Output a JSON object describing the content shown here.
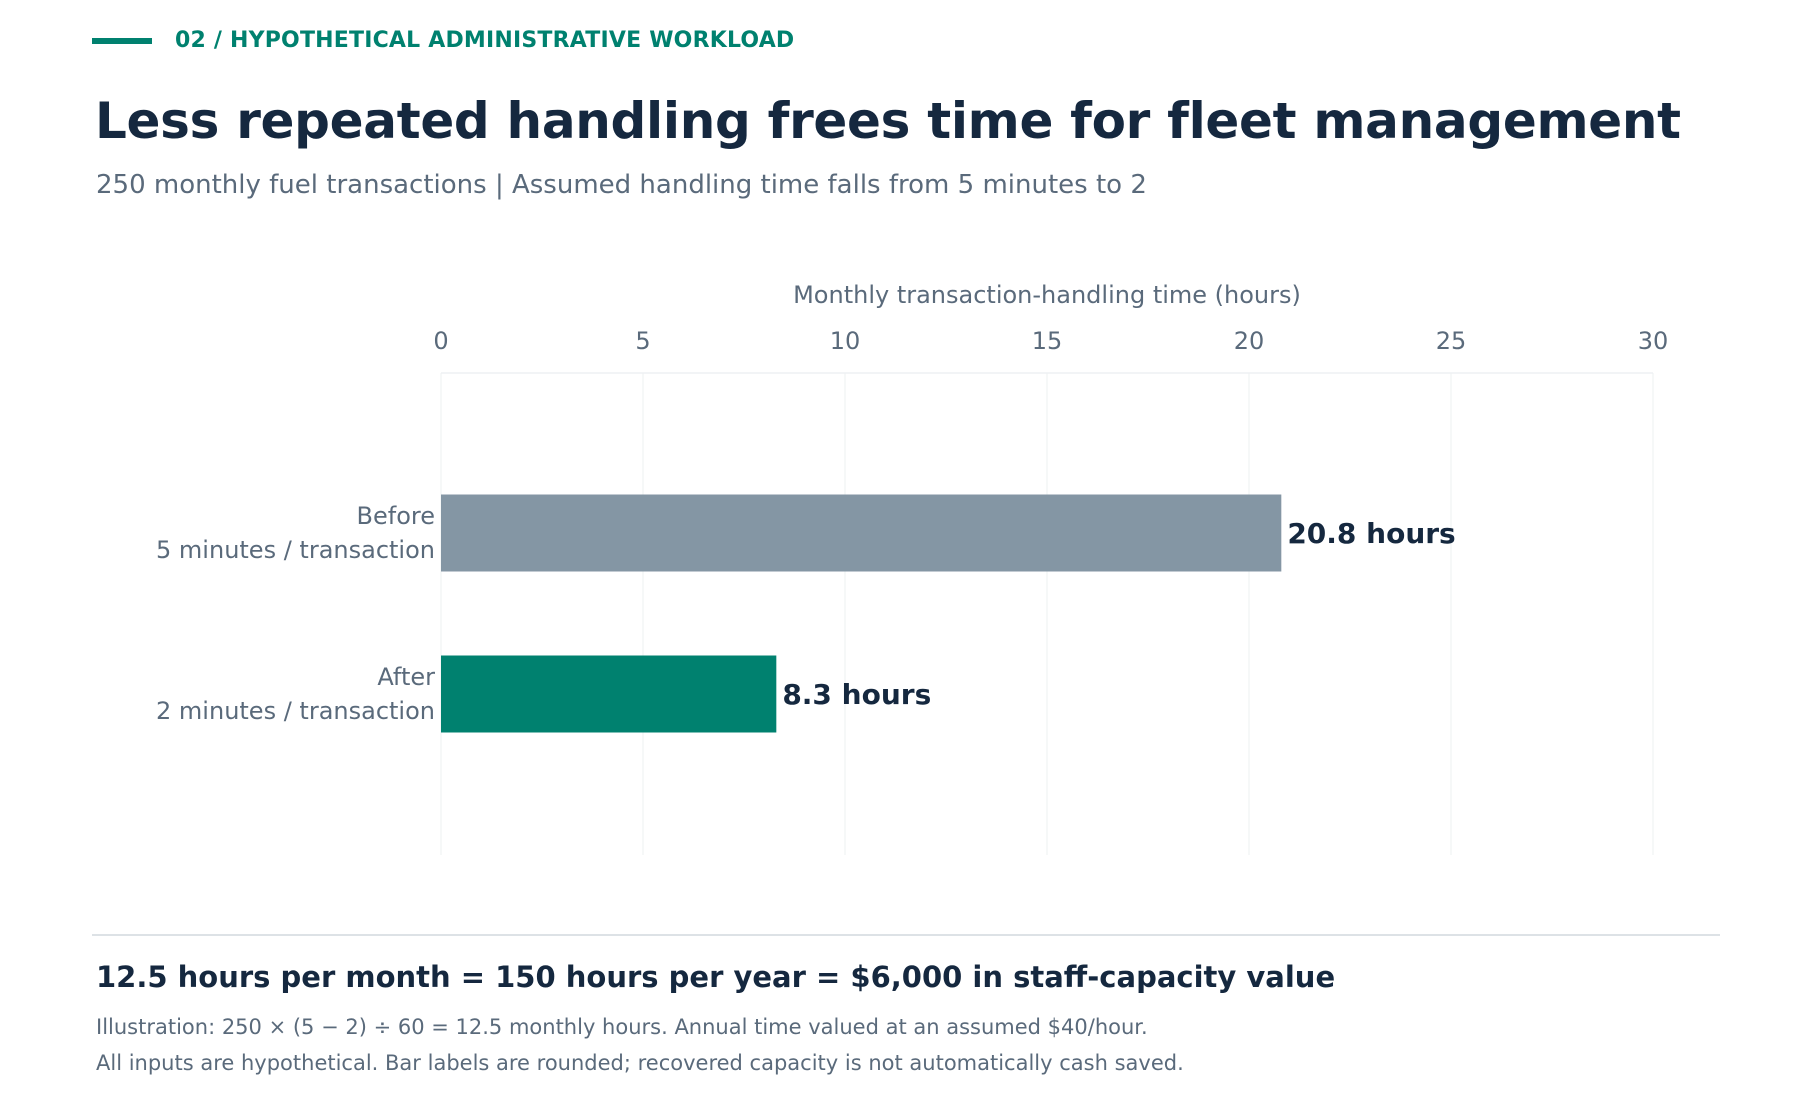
{
  "header": {
    "kicker": "02 / HYPOTHETICAL ADMINISTRATIVE WORKLOAD",
    "title": "Less repeated handling frees time for fleet management",
    "subtitle": "250 monthly fuel transactions  |  Assumed handling time falls from 5 minutes to 2"
  },
  "colors": {
    "accent": "#00816f",
    "before_bar": "#8496a4",
    "after_bar": "#00816f",
    "title": "#15283f",
    "muted": "#5a6a7b"
  },
  "chart_data": {
    "type": "bar",
    "orientation": "horizontal",
    "xlabel": "Monthly transaction-handling time (hours)",
    "xlim": [
      0,
      30
    ],
    "xticks": [
      0,
      5,
      10,
      15,
      20,
      25,
      30
    ],
    "grid": true,
    "categories": [
      {
        "label_line1": "Before",
        "label_line2": "5 minutes / transaction",
        "value": 20.8,
        "value_label": "20.8 hours",
        "color": "#8496a4"
      },
      {
        "label_line1": "After",
        "label_line2": "2 minutes / transaction",
        "value": 8.3,
        "value_label": "8.3 hours",
        "color": "#00816f"
      }
    ]
  },
  "footer": {
    "summary": "12.5 hours per month = 150 hours per year = $6,000 in staff-capacity value",
    "note1": "Illustration: 250 × (5 − 2) ÷ 60 = 12.5 monthly hours. Annual time valued at an assumed $40/hour.",
    "note2": "All inputs are hypothetical. Bar labels are rounded; recovered capacity is not automatically cash saved."
  }
}
